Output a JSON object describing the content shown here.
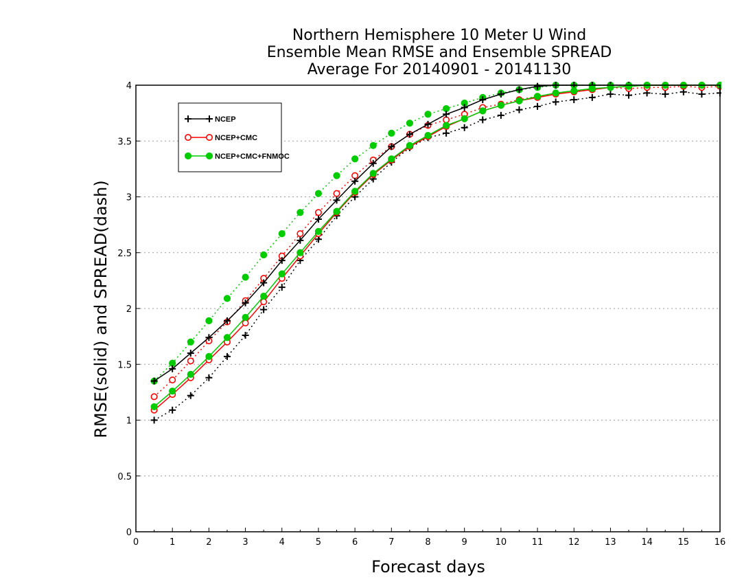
{
  "chart_data": {
    "type": "line",
    "title": [
      "Northern Hemisphere 10 Meter U Wind",
      "Ensemble Mean RMSE and Ensemble SPREAD",
      "Average For 20140901 - 20141130"
    ],
    "xlabel": "Forecast days",
    "ylabel": "RMSE(solid) and SPREAD(dash)",
    "xlim": [
      0,
      16
    ],
    "ylim": [
      0,
      4
    ],
    "xticks": [
      0,
      1,
      2,
      3,
      4,
      5,
      6,
      7,
      8,
      9,
      10,
      11,
      12,
      13,
      14,
      15,
      16
    ],
    "yticks": [
      0,
      0.5,
      1,
      1.5,
      2,
      2.5,
      3,
      3.5,
      4
    ],
    "ytick_labels": [
      "0",
      "0.5",
      "1",
      "1.5",
      "2",
      "2.5",
      "3",
      "3.5",
      "4"
    ],
    "grid": true,
    "legend_position": "top-left",
    "x": [
      0.5,
      1,
      1.5,
      2,
      2.5,
      3,
      3.5,
      4,
      4.5,
      5,
      5.5,
      6,
      6.5,
      7,
      7.5,
      8,
      8.5,
      9,
      9.5,
      10,
      10.5,
      11,
      11.5,
      12,
      12.5,
      13,
      13.5,
      14,
      14.5,
      15,
      15.5,
      16
    ],
    "series": [
      {
        "name": "NCEP",
        "stat": "rmse",
        "style": "solid",
        "color": "#000000",
        "marker": "plus",
        "values": [
          1.35,
          1.46,
          1.6,
          1.74,
          1.89,
          2.05,
          2.23,
          2.43,
          2.61,
          2.8,
          2.97,
          3.14,
          3.3,
          3.45,
          3.56,
          3.65,
          3.74,
          3.8,
          3.87,
          3.92,
          3.96,
          3.99,
          4.01,
          4.02,
          4.02,
          4.02,
          4.02,
          4.02,
          4.02,
          4.02,
          4.02,
          4.02
        ]
      },
      {
        "name": "NCEP+CMC",
        "stat": "rmse",
        "style": "solid",
        "color": "#ff0000",
        "marker": "open-circle",
        "values": [
          1.09,
          1.23,
          1.38,
          1.54,
          1.7,
          1.87,
          2.06,
          2.27,
          2.47,
          2.67,
          2.86,
          3.04,
          3.2,
          3.33,
          3.45,
          3.54,
          3.63,
          3.7,
          3.77,
          3.82,
          3.86,
          3.89,
          3.92,
          3.94,
          3.96,
          3.98,
          3.99,
          4.0,
          4.0,
          4.0,
          4.0,
          4.0
        ]
      },
      {
        "name": "NCEP+CMC+FNMOC",
        "stat": "rmse",
        "style": "solid",
        "color": "#00cc00",
        "marker": "filled-circle",
        "values": [
          1.12,
          1.26,
          1.41,
          1.57,
          1.74,
          1.92,
          2.11,
          2.31,
          2.5,
          2.69,
          2.87,
          3.05,
          3.21,
          3.34,
          3.46,
          3.55,
          3.64,
          3.7,
          3.77,
          3.82,
          3.86,
          3.9,
          3.93,
          3.95,
          3.97,
          3.98,
          3.99,
          4.0,
          4.0,
          4.0,
          4.0,
          4.0
        ]
      },
      {
        "name": "NCEP",
        "stat": "spread",
        "style": "dotted",
        "color": "#000000",
        "marker": "plus",
        "values": [
          1.0,
          1.09,
          1.22,
          1.38,
          1.57,
          1.76,
          1.99,
          2.19,
          2.43,
          2.62,
          2.83,
          3.0,
          3.16,
          3.31,
          3.44,
          3.53,
          3.57,
          3.62,
          3.69,
          3.73,
          3.78,
          3.81,
          3.85,
          3.87,
          3.89,
          3.92,
          3.91,
          3.93,
          3.92,
          3.94,
          3.92,
          3.93
        ]
      },
      {
        "name": "NCEP+CMC",
        "stat": "spread",
        "style": "dotted",
        "color": "#ff0000",
        "marker": "open-circle",
        "values": [
          1.21,
          1.36,
          1.53,
          1.71,
          1.88,
          2.07,
          2.27,
          2.47,
          2.67,
          2.86,
          3.03,
          3.19,
          3.33,
          3.45,
          3.56,
          3.64,
          3.69,
          3.74,
          3.8,
          3.83,
          3.87,
          3.9,
          3.93,
          3.95,
          3.96,
          3.98,
          3.97,
          3.98,
          3.98,
          3.99,
          3.98,
          3.99
        ]
      },
      {
        "name": "NCEP+CMC+FNMOC",
        "stat": "spread",
        "style": "dotted",
        "color": "#00cc00",
        "marker": "filled-circle",
        "values": [
          1.35,
          1.51,
          1.7,
          1.89,
          2.09,
          2.28,
          2.48,
          2.67,
          2.86,
          3.03,
          3.19,
          3.34,
          3.46,
          3.57,
          3.66,
          3.74,
          3.79,
          3.84,
          3.89,
          3.93,
          3.96,
          3.98,
          4.0,
          4.0,
          4.0,
          4.0,
          4.0,
          4.0,
          4.0,
          4.0,
          4.0,
          4.0
        ]
      }
    ]
  }
}
